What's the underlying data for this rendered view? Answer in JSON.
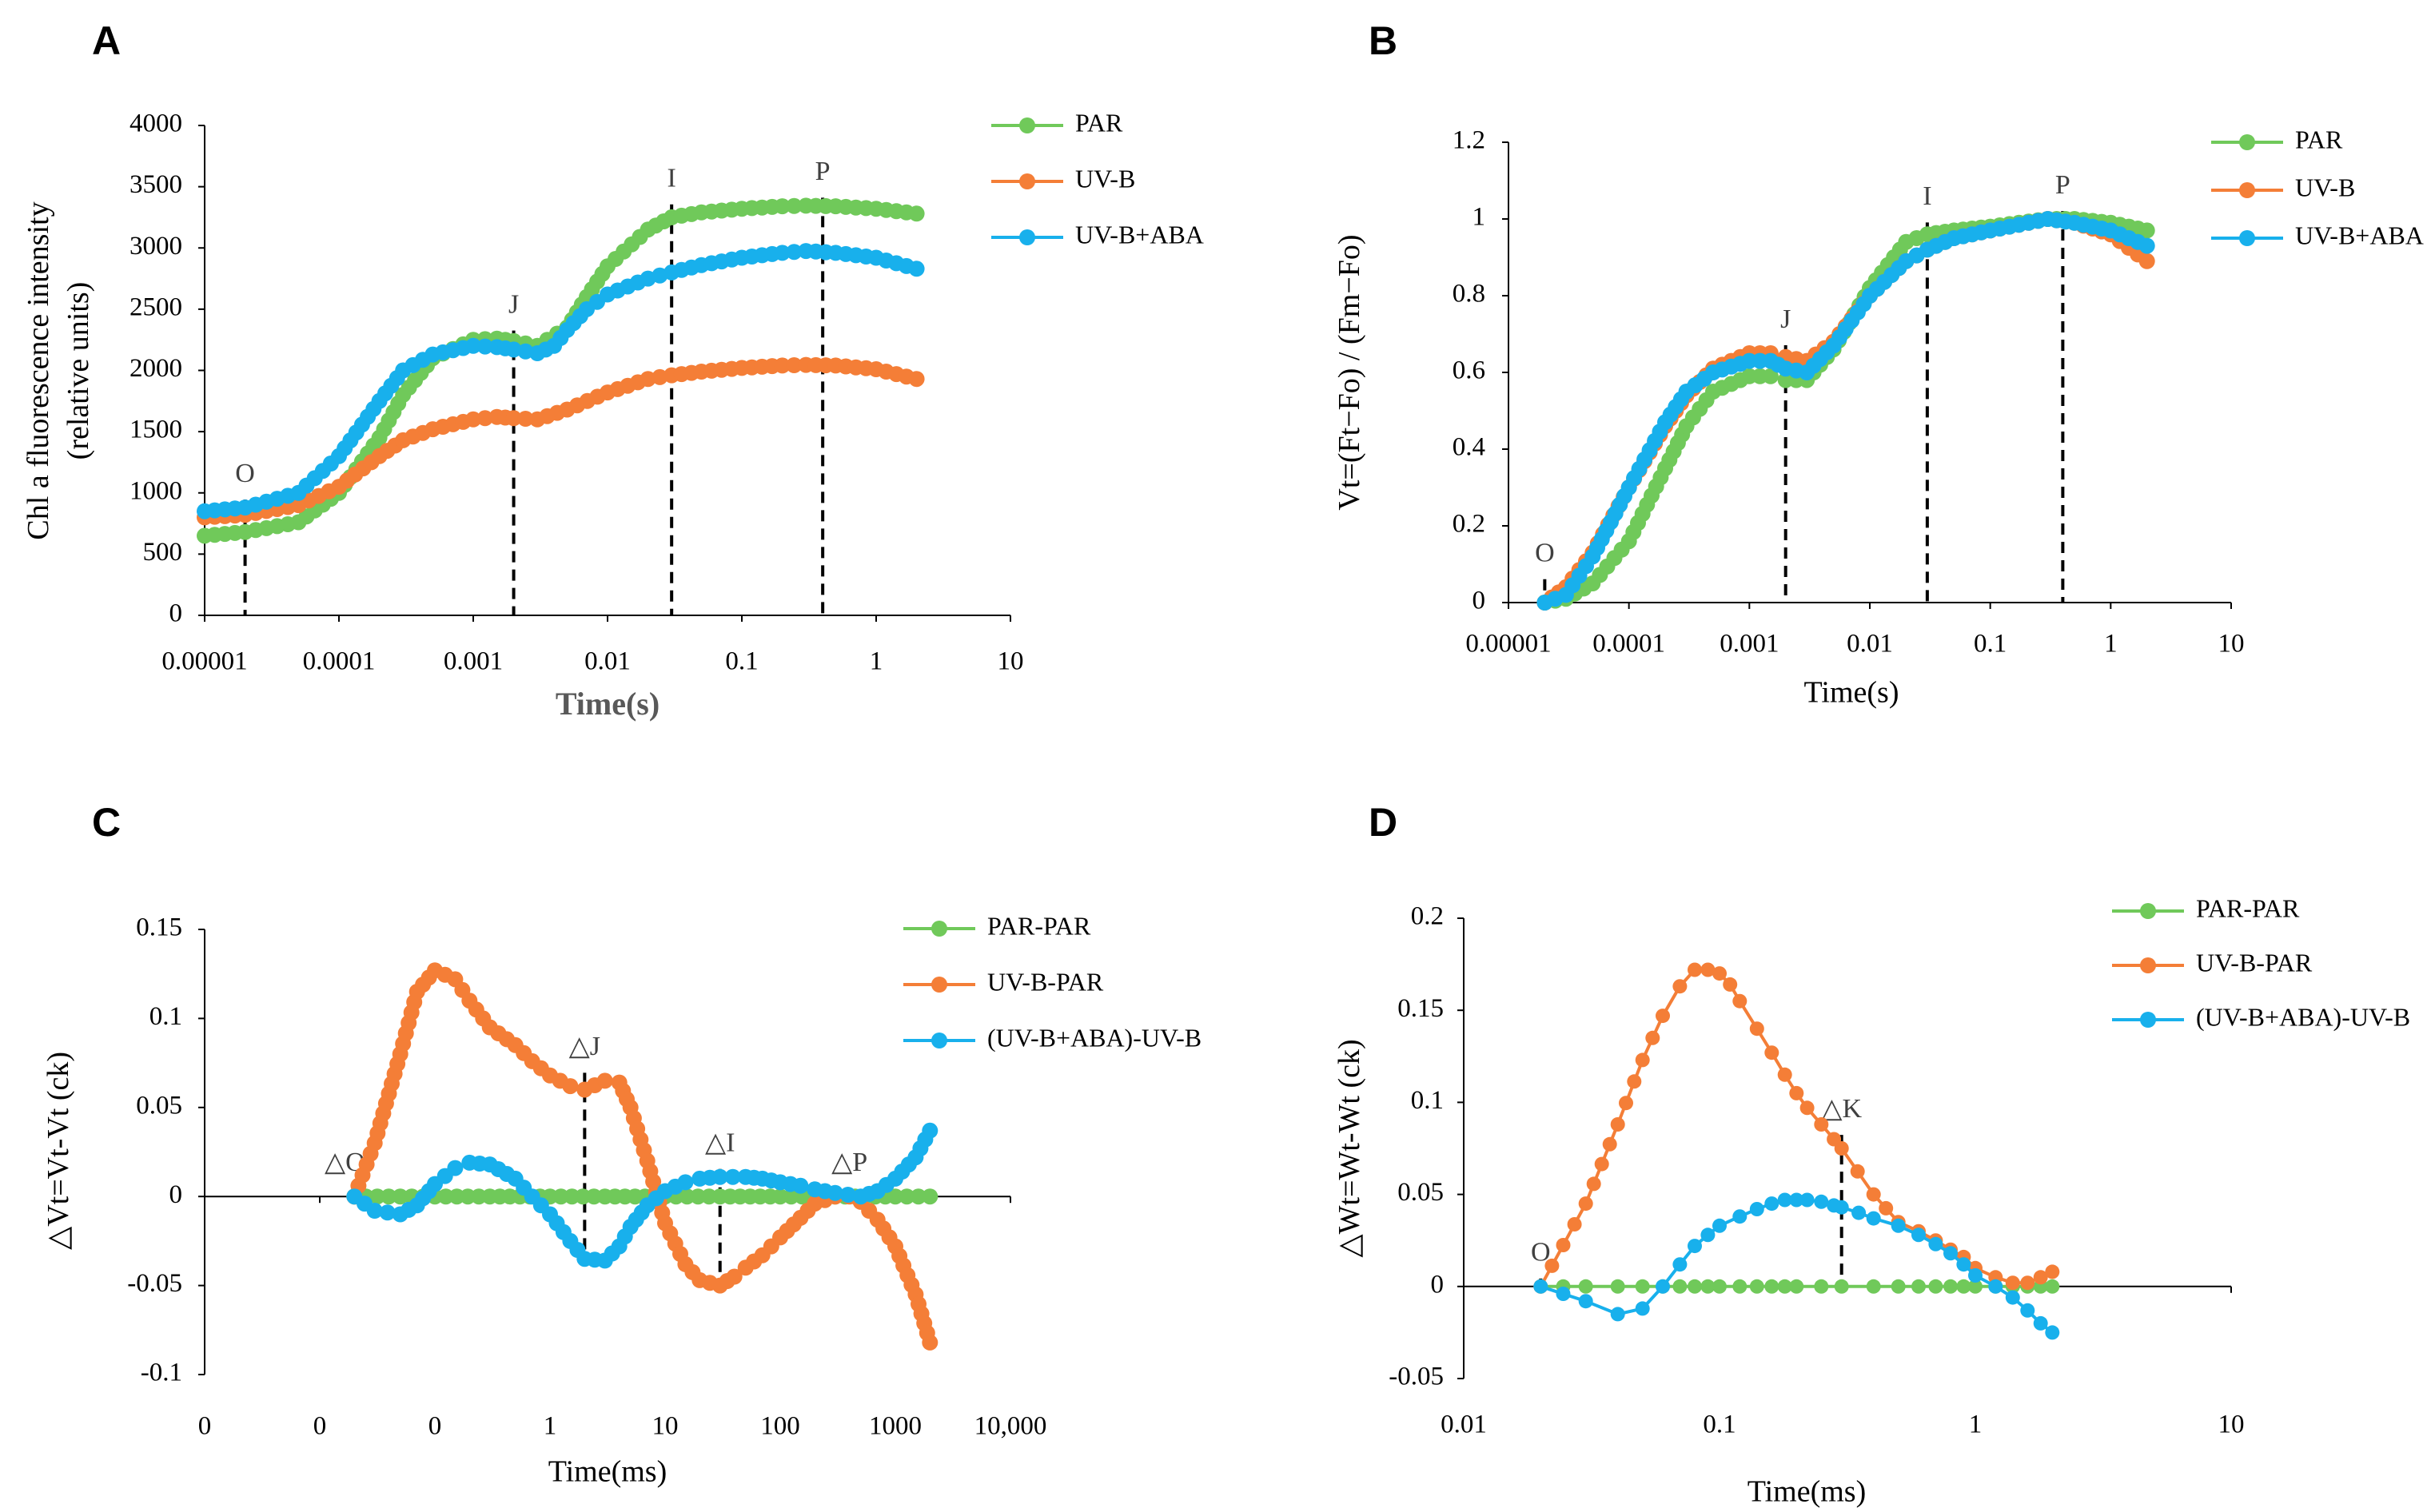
{
  "colors": {
    "green": "#70C95A",
    "orange": "#F47E37",
    "blue": "#18B0EC"
  },
  "chart_data": [
    {
      "panel": "A",
      "type": "scatter",
      "x_scale": "log",
      "xlim": [
        1e-05,
        10
      ],
      "ylim": [
        0,
        4000
      ],
      "yticks": [
        0,
        500,
        1000,
        1500,
        2000,
        2500,
        3000,
        3500,
        4000
      ],
      "xtick_values": [
        1e-05,
        0.0001,
        0.001,
        0.01,
        0.1,
        1,
        10
      ],
      "xtick_labels": [
        "0.00001",
        "0.0001",
        "0.001",
        "0.01",
        "0.1",
        "1",
        "10"
      ],
      "xlabel": "Time(s)",
      "ylabel": [
        "Chl a fluorescence intensity",
        "(relative units)"
      ],
      "legend": [
        {
          "name": "PAR",
          "color": "green"
        },
        {
          "name": "UV-B",
          "color": "orange"
        },
        {
          "name": "UV-B+ABA",
          "color": "blue"
        }
      ],
      "series": [
        {
          "name": "PAR",
          "color": "green",
          "x": [
            1e-05,
            2e-05,
            5e-05,
            0.0001,
            0.0002,
            0.0003,
            0.0005,
            0.001,
            0.0015,
            0.002,
            0.003,
            0.005,
            0.007,
            0.01,
            0.02,
            0.03,
            0.05,
            0.1,
            0.2,
            0.3,
            0.5,
            1,
            2
          ],
          "y": [
            650,
            680,
            760,
            1000,
            1450,
            1800,
            2100,
            2250,
            2260,
            2240,
            2200,
            2350,
            2600,
            2850,
            3150,
            3250,
            3290,
            3320,
            3340,
            3345,
            3340,
            3320,
            3280
          ]
        },
        {
          "name": "UV-B",
          "color": "orange",
          "x": [
            1e-05,
            2e-05,
            5e-05,
            0.0001,
            0.0002,
            0.0003,
            0.0005,
            0.001,
            0.0015,
            0.002,
            0.003,
            0.005,
            0.01,
            0.02,
            0.03,
            0.05,
            0.1,
            0.2,
            0.3,
            0.5,
            1,
            2
          ],
          "y": [
            800,
            820,
            900,
            1050,
            1300,
            1430,
            1520,
            1600,
            1620,
            1610,
            1600,
            1680,
            1820,
            1930,
            1960,
            1990,
            2020,
            2040,
            2045,
            2040,
            2010,
            1930
          ]
        },
        {
          "name": "UV-B+ABA",
          "color": "blue",
          "x": [
            1e-05,
            2e-05,
            5e-05,
            0.0001,
            0.0002,
            0.0003,
            0.0005,
            0.001,
            0.0015,
            0.002,
            0.003,
            0.004,
            0.005,
            0.007,
            0.01,
            0.02,
            0.03,
            0.05,
            0.1,
            0.2,
            0.3,
            0.5,
            1,
            2
          ],
          "y": [
            850,
            880,
            1000,
            1300,
            1750,
            2000,
            2130,
            2200,
            2190,
            2170,
            2140,
            2200,
            2330,
            2500,
            2620,
            2750,
            2800,
            2860,
            2920,
            2960,
            2975,
            2960,
            2920,
            2830
          ]
        }
      ],
      "ref_lines": [
        {
          "label": "O",
          "x": 2e-05
        },
        {
          "label": "J",
          "x": 0.002
        },
        {
          "label": "I",
          "x": 0.03
        },
        {
          "label": "P",
          "x": 0.4
        }
      ]
    },
    {
      "panel": "B",
      "type": "scatter",
      "x_scale": "log",
      "xlim": [
        1e-05,
        10
      ],
      "ylim": [
        0,
        1.2
      ],
      "yticks": [
        0,
        0.2,
        0.4,
        0.6,
        0.8,
        1,
        1.2
      ],
      "ytick_labels": [
        "0",
        "0.2",
        "0.4",
        "0.6",
        "0.8",
        "1",
        "1.2"
      ],
      "xtick_values": [
        1e-05,
        0.0001,
        0.001,
        0.01,
        0.1,
        1,
        10
      ],
      "xtick_labels": [
        "0.00001",
        "0.0001",
        "0.001",
        "0.01",
        "0.1",
        "1",
        "10"
      ],
      "xlabel": "Time(s)",
      "ylabel": "Vt=(Ft−Fo) / (Fm−Fo)",
      "legend": [
        {
          "name": "PAR",
          "color": "green"
        },
        {
          "name": "UV-B",
          "color": "orange"
        },
        {
          "name": "UV-B+ABA",
          "color": "blue"
        }
      ],
      "series": [
        {
          "name": "PAR",
          "color": "green",
          "x": [
            2e-05,
            3e-05,
            5e-05,
            0.0001,
            0.0002,
            0.0003,
            0.0005,
            0.001,
            0.0015,
            0.002,
            0.003,
            0.005,
            0.01,
            0.02,
            0.03,
            0.05,
            0.1,
            0.3,
            0.5,
            1,
            2
          ],
          "y": [
            0,
            0.01,
            0.05,
            0.16,
            0.35,
            0.46,
            0.55,
            0.59,
            0.59,
            0.58,
            0.58,
            0.66,
            0.82,
            0.94,
            0.96,
            0.97,
            0.98,
            1,
            1,
            0.99,
            0.97
          ]
        },
        {
          "name": "UV-B",
          "color": "orange",
          "x": [
            2e-05,
            3e-05,
            5e-05,
            0.0001,
            0.0002,
            0.0003,
            0.0005,
            0.001,
            0.0015,
            0.002,
            0.003,
            0.005,
            0.01,
            0.02,
            0.03,
            0.05,
            0.1,
            0.3,
            0.5,
            1,
            2
          ],
          "y": [
            0,
            0.04,
            0.13,
            0.3,
            0.46,
            0.54,
            0.61,
            0.65,
            0.65,
            0.64,
            0.63,
            0.68,
            0.8,
            0.89,
            0.92,
            0.95,
            0.97,
            1,
            0.99,
            0.96,
            0.89
          ]
        },
        {
          "name": "UV-B+ABA",
          "color": "blue",
          "x": [
            2e-05,
            3e-05,
            5e-05,
            0.0001,
            0.0002,
            0.0003,
            0.0005,
            0.001,
            0.0015,
            0.002,
            0.003,
            0.005,
            0.01,
            0.02,
            0.03,
            0.05,
            0.1,
            0.3,
            0.5,
            1,
            2
          ],
          "y": [
            0,
            0.02,
            0.12,
            0.3,
            0.47,
            0.55,
            0.6,
            0.63,
            0.63,
            0.61,
            0.6,
            0.67,
            0.8,
            0.89,
            0.92,
            0.95,
            0.97,
            1,
            0.99,
            0.97,
            0.93
          ]
        }
      ],
      "ref_lines": [
        {
          "label": "O",
          "x": 2e-05
        },
        {
          "label": "J",
          "x": 0.002
        },
        {
          "label": "I",
          "x": 0.03
        },
        {
          "label": "P",
          "x": 0.4
        }
      ]
    },
    {
      "panel": "C",
      "type": "scatter",
      "x_scale": "symlog",
      "xlim": [
        0,
        10000
      ],
      "ylim": [
        -0.1,
        0.15
      ],
      "yticks": [
        -0.1,
        -0.05,
        0,
        0.05,
        0.1,
        0.15
      ],
      "ytick_labels": [
        "-0.1",
        "-0.05",
        "0",
        "0.05",
        "0.1",
        "0.15"
      ],
      "xtick_values": [
        0,
        0.01,
        0.1,
        1,
        10,
        100,
        1000,
        10000
      ],
      "xtick_labels": [
        "0",
        "0",
        "0",
        "1",
        "10",
        "100",
        "1000",
        "10,000"
      ],
      "xlabel": "Time(ms)",
      "ylabel": "△Vt=Vt-Vt (ck)",
      "legend": [
        {
          "name": "PAR-PAR",
          "color": "green"
        },
        {
          "name": "UV-B-PAR",
          "color": "orange"
        },
        {
          "name": "(UV-B+ABA)-UV-B",
          "color": "blue"
        }
      ],
      "series": [
        {
          "name": "PAR-PAR",
          "color": "green",
          "x": [
            0.02,
            0.05,
            0.1,
            0.3,
            1,
            3,
            10,
            30,
            100,
            300,
            1000,
            2000
          ],
          "y": [
            0,
            0,
            0,
            0,
            0,
            0,
            0,
            0,
            0,
            0,
            0,
            0
          ]
        },
        {
          "name": "UV-B-PAR",
          "color": "orange",
          "x": [
            0.02,
            0.03,
            0.05,
            0.07,
            0.1,
            0.15,
            0.2,
            0.3,
            0.5,
            0.7,
            1,
            1.5,
            2,
            3,
            4,
            5,
            7,
            10,
            15,
            20,
            30,
            40,
            50,
            70,
            100,
            150,
            200,
            300,
            400,
            500,
            700,
            1000,
            1500,
            2000
          ],
          "y": [
            0,
            0.03,
            0.08,
            0.115,
            0.127,
            0.122,
            0.11,
            0.095,
            0.085,
            0.076,
            0.068,
            0.062,
            0.06,
            0.065,
            0.064,
            0.05,
            0.02,
            -0.015,
            -0.038,
            -0.047,
            -0.05,
            -0.045,
            -0.04,
            -0.033,
            -0.023,
            -0.012,
            -0.004,
            0,
            0,
            -0.003,
            -0.013,
            -0.028,
            -0.055,
            -0.082
          ]
        },
        {
          "name": "(UV-B+ABA)-UV-B",
          "color": "blue",
          "x": [
            0.02,
            0.03,
            0.05,
            0.07,
            0.1,
            0.15,
            0.2,
            0.3,
            0.5,
            0.7,
            1,
            1.5,
            2,
            3,
            4,
            5,
            7,
            10,
            15,
            20,
            30,
            50,
            70,
            100,
            150,
            200,
            300,
            500,
            700,
            1000,
            1500,
            2000
          ],
          "y": [
            0,
            -0.008,
            -0.01,
            -0.005,
            0.007,
            0.016,
            0.019,
            0.018,
            0.01,
            0,
            -0.01,
            -0.025,
            -0.035,
            -0.036,
            -0.028,
            -0.017,
            -0.005,
            0.003,
            0.008,
            0.01,
            0.011,
            0.011,
            0.01,
            0.008,
            0.006,
            0.004,
            0.002,
            0,
            0.003,
            0.01,
            0.022,
            0.037
          ]
        }
      ],
      "ref_lines": [
        {
          "label": "△O",
          "x": 0.02,
          "y_top": 0.0
        },
        {
          "label": "△J",
          "x": 2,
          "y_top": 0.065
        },
        {
          "label": "△I",
          "x": 30,
          "y_top": 0.011
        },
        {
          "label": "△P",
          "x": 400,
          "y_top": 0.0
        }
      ]
    },
    {
      "panel": "D",
      "type": "scatter",
      "x_scale": "log",
      "xlim": [
        0.01,
        10
      ],
      "ylim": [
        -0.05,
        0.2
      ],
      "yticks": [
        -0.05,
        0,
        0.05,
        0.1,
        0.15,
        0.2
      ],
      "ytick_labels": [
        "-0.05",
        "0",
        "0.05",
        "0.1",
        "0.15",
        "0.2"
      ],
      "xtick_values": [
        0.01,
        0.1,
        1,
        10
      ],
      "xtick_labels": [
        "0.01",
        "0.1",
        "1",
        "10"
      ],
      "xlabel": "Time(ms)",
      "ylabel": "△Wt=Wt-Wt (ck)",
      "legend": [
        {
          "name": "PAR-PAR",
          "color": "green"
        },
        {
          "name": "UV-B-PAR",
          "color": "orange"
        },
        {
          "name": "(UV-B+ABA)-UV-B",
          "color": "blue"
        }
      ],
      "series": [
        {
          "name": "PAR-PAR",
          "color": "green",
          "x": [
            0.02,
            0.03,
            0.04,
            0.05,
            0.06,
            0.07,
            0.08,
            0.09,
            0.1,
            0.12,
            0.14,
            0.16,
            0.18,
            0.2,
            0.25,
            0.3,
            0.4,
            0.5,
            0.6,
            0.7,
            0.8,
            0.9,
            1,
            1.2,
            1.4,
            1.6,
            1.8,
            2
          ],
          "y": [
            0,
            0,
            0,
            0,
            0,
            0,
            0,
            0,
            0,
            0,
            0,
            0,
            0,
            0,
            0,
            0,
            0,
            0,
            0,
            0,
            0,
            0,
            0,
            0,
            0,
            0,
            0,
            0
          ]
        },
        {
          "name": "UV-B-PAR",
          "color": "orange",
          "x": [
            0.02,
            0.03,
            0.04,
            0.05,
            0.06,
            0.07,
            0.08,
            0.09,
            0.1,
            0.11,
            0.12,
            0.14,
            0.16,
            0.18,
            0.2,
            0.22,
            0.25,
            0.28,
            0.3,
            0.4,
            0.5,
            0.6,
            0.7,
            0.8,
            0.9,
            1,
            1.2,
            1.4,
            1.6,
            1.8,
            2
          ],
          "y": [
            0,
            0.045,
            0.088,
            0.123,
            0.147,
            0.163,
            0.172,
            0.172,
            0.17,
            0.164,
            0.155,
            0.14,
            0.127,
            0.115,
            0.105,
            0.097,
            0.088,
            0.08,
            0.075,
            0.05,
            0.035,
            0.03,
            0.025,
            0.02,
            0.016,
            0.01,
            0.005,
            0.002,
            0.002,
            0.005,
            0.008
          ]
        },
        {
          "name": "(UV-B+ABA)-UV-B",
          "color": "blue",
          "x": [
            0.02,
            0.03,
            0.04,
            0.05,
            0.06,
            0.07,
            0.08,
            0.09,
            0.1,
            0.12,
            0.14,
            0.16,
            0.18,
            0.2,
            0.22,
            0.25,
            0.28,
            0.3,
            0.35,
            0.4,
            0.5,
            0.6,
            0.7,
            0.8,
            0.9,
            1,
            1.2,
            1.4,
            1.6,
            1.8,
            2
          ],
          "y": [
            0,
            -0.008,
            -0.015,
            -0.012,
            0,
            0.012,
            0.022,
            0.028,
            0.033,
            0.038,
            0.042,
            0.045,
            0.047,
            0.047,
            0.047,
            0.046,
            0.044,
            0.043,
            0.04,
            0.037,
            0.033,
            0.028,
            0.023,
            0.018,
            0.012,
            0.006,
            0,
            -0.006,
            -0.013,
            -0.02,
            -0.025
          ]
        }
      ],
      "ref_lines": [
        {
          "label": "O",
          "x": 0.02,
          "y_top": 0.0
        },
        {
          "label": "△K",
          "x": 0.3,
          "y_top": 0.078
        }
      ]
    }
  ]
}
